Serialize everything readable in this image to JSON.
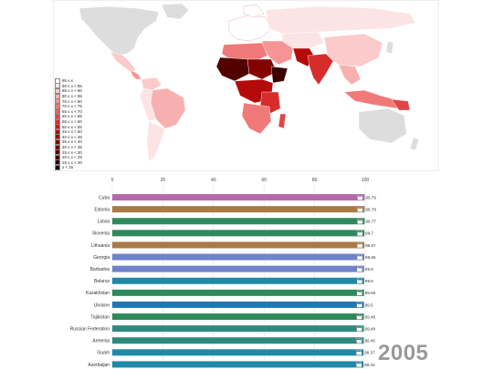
{
  "year": "2005",
  "colors": {
    "map_land_nodata": "#dddddd",
    "map_background": "#ffffff"
  },
  "legend": [
    {
      "label": "95 ≤ x",
      "color": "#ffffff"
    },
    {
      "label": "90 ≤ x < 95",
      "color": "#fde4e4"
    },
    {
      "label": "85 ≤ x < 90",
      "color": "#fbcaca"
    },
    {
      "label": "80 ≤ x < 85",
      "color": "#f8afaf"
    },
    {
      "label": "75 ≤ x < 80",
      "color": "#f59595"
    },
    {
      "label": "70 ≤ x < 75",
      "color": "#f07a7a"
    },
    {
      "label": "65 ≤ x < 70",
      "color": "#ea5f5f"
    },
    {
      "label": "60 ≤ x < 65",
      "color": "#e24545"
    },
    {
      "label": "55 ≤ x < 60",
      "color": "#d72c2c"
    },
    {
      "label": "50 ≤ x < 55",
      "color": "#c81818"
    },
    {
      "label": "45 ≤ x < 50",
      "color": "#b50a0a"
    },
    {
      "label": "40 ≤ x < 45",
      "color": "#9e0404"
    },
    {
      "label": "35 ≤ x < 40",
      "color": "#850202"
    },
    {
      "label": "30 ≤ x < 35",
      "color": "#6b0101"
    },
    {
      "label": "25 ≤ x < 30",
      "color": "#520000"
    },
    {
      "label": "20 ≤ x < 25",
      "color": "#3c0000"
    },
    {
      "label": "15 ≤ x < 20",
      "color": "#270000"
    },
    {
      "label": "x < 15",
      "color": "#120000"
    }
  ],
  "chart_data": {
    "type": "bar",
    "orientation": "horizontal",
    "xlim": [
      0,
      100
    ],
    "xticks": [
      0,
      20,
      40,
      60,
      80,
      100
    ],
    "grid": true,
    "categories": [
      "Cuba",
      "Estonia",
      "Latvia",
      "Slovenia",
      "Lithuania",
      "Georgia",
      "Barbados",
      "Belarus",
      "Kazakhstan",
      "Ukraine",
      "Tajikistan",
      "Russian Federation",
      "Armenia",
      "Guam",
      "Azerbaijan"
    ],
    "values": [
      99.79,
      99.78,
      99.77,
      99.7,
      99.67,
      99.65,
      99.6,
      99.6,
      99.55,
      99.5,
      99.48,
      99.48,
      99.45,
      99.37,
      99.34
    ],
    "value_labels": [
      "99.79",
      "99.78",
      "99.77",
      "99.7",
      "99.67",
      "99.65",
      "99.6",
      "99.6",
      "99.55",
      "99.5",
      "99.48",
      "99.48",
      "99.45",
      "99.37",
      "99.34"
    ],
    "bar_colors": [
      "#b46aa8",
      "#a87a44",
      "#2e8a5c",
      "#2e8a5c",
      "#a87a44",
      "#7082cc",
      "#7082cc",
      "#1e8aa8",
      "#2e8a5c",
      "#1e78b8",
      "#2e8a5c",
      "#2e8a80",
      "#2e8a80",
      "#1e8aa8",
      "#1e8aa8"
    ]
  }
}
